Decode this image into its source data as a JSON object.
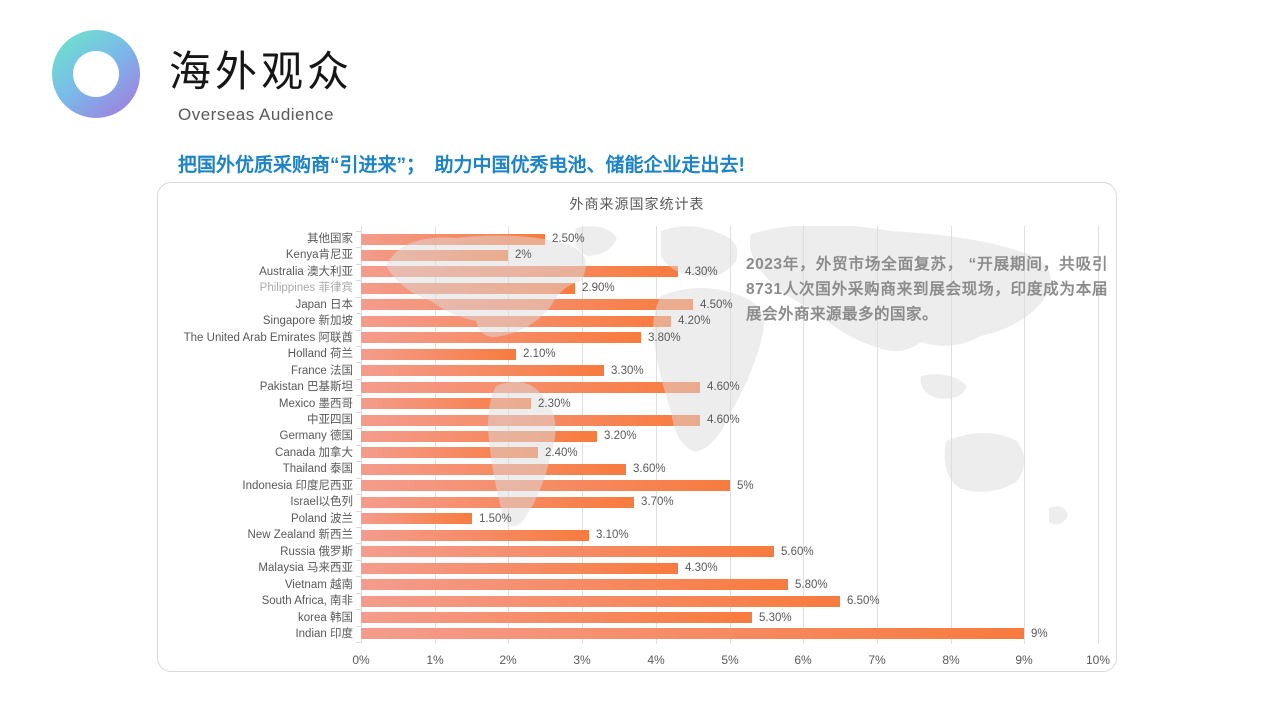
{
  "header": {
    "title": "海外观众",
    "subtitle": "Overseas Audience"
  },
  "headline": {
    "text": "把国外优质采购商“引进来”；　助力中国优秀电池、储能企业走出去!",
    "color": "#1E83C4"
  },
  "annotation": {
    "text": "2023年，外贸市场全面复苏， “开展期间，共吸引8731人次国外采购商来到展会现场，印度成为本届展会外商来源最多的国家。"
  },
  "chart_data": {
    "type": "bar",
    "orientation": "horizontal",
    "title": "外商来源国家统计表",
    "categories": [
      "其他国家",
      "Kenya肯尼亚",
      "Australia 澳大利亚",
      "Philippines 菲律宾",
      "Japan 日本",
      "Singapore 新加坡",
      "The United Arab Emirates 阿联酋",
      "Holland  荷兰",
      "France   法国",
      "Pakistan 巴基斯坦",
      "Mexico   墨西哥",
      "中亚四国",
      "Germany  德国",
      "Canada  加拿大",
      "Thailand 泰国",
      "Indonesia 印度尼西亚",
      "Israel以色列",
      "Poland 波兰",
      "New Zealand 新西兰",
      "Russia 俄罗斯",
      "Malaysia 马来西亚",
      "Vietnam 越南",
      "South Africa, 南非",
      "korea 韩国",
      "Indian 印度"
    ],
    "values": [
      2.5,
      2,
      4.3,
      2.9,
      4.5,
      4.2,
      3.8,
      2.1,
      3.3,
      4.6,
      2.3,
      4.6,
      3.2,
      2.4,
      3.6,
      5,
      3.7,
      1.5,
      3.1,
      5.6,
      4.3,
      5.8,
      6.5,
      5.3,
      9
    ],
    "value_labels": [
      "2.50%",
      "2%",
      "4.30%",
      "2.90%",
      "4.50%",
      "4.20%",
      "3.80%",
      "2.10%",
      "3.30%",
      "4.60%",
      "2.30%",
      "4.60%",
      "3.20%",
      "2.40%",
      "3.60%",
      "5%",
      "3.70%",
      "1.50%",
      "3.10%",
      "5.60%",
      "4.30%",
      "5.80%",
      "6.50%",
      "5.30%",
      "9%"
    ],
    "muted_label_rows": [
      3
    ],
    "xlim": [
      0,
      10
    ],
    "x_ticks": [
      "0%",
      "1%",
      "2%",
      "3%",
      "4%",
      "5%",
      "6%",
      "7%",
      "8%",
      "9%",
      "10%"
    ],
    "grid": true,
    "legend": "none",
    "colors": {
      "bar_gradient_start": "#F49C8D",
      "bar_gradient_end": "#F87B3E",
      "grid_line": "#DFDFDF",
      "axis_text": "#595959",
      "muted_label": "#ABABAB"
    }
  }
}
